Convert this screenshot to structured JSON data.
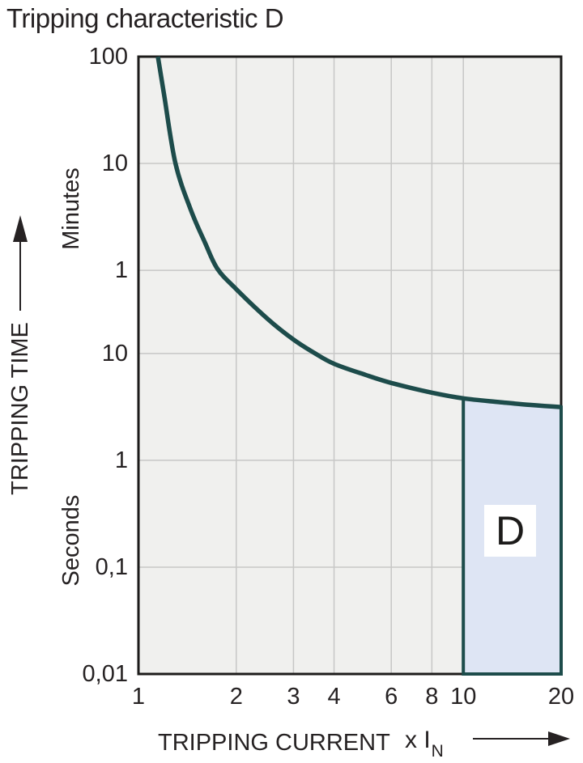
{
  "title": "Tripping characteristic D",
  "region_label": "D",
  "y_axis": {
    "title": "TRIPPING TIME",
    "unit_top": "Minutes",
    "unit_bottom": "Seconds",
    "ticks": [
      {
        "label": "100",
        "seconds": 6000
      },
      {
        "label": "10",
        "seconds": 600
      },
      {
        "label": "1",
        "seconds": 60
      },
      {
        "label": "10",
        "seconds": 10
      },
      {
        "label": "1",
        "seconds": 1
      },
      {
        "label": "0,1",
        "seconds": 0.1
      },
      {
        "label": "0,01",
        "seconds": 0.01
      }
    ]
  },
  "x_axis": {
    "title": "TRIPPING CURRENT",
    "unit_prefix": "x I",
    "unit_sub": "N",
    "ticks": [
      {
        "label": "1",
        "value": 1
      },
      {
        "label": "2",
        "value": 2
      },
      {
        "label": "3",
        "value": 3
      },
      {
        "label": "4",
        "value": 4
      },
      {
        "label": "6",
        "value": 6
      },
      {
        "label": "8",
        "value": 8
      },
      {
        "label": "10",
        "value": 10
      },
      {
        "label": "20",
        "value": 20
      }
    ]
  },
  "colors": {
    "curve": "#1d4c4b",
    "region_fill": "#dee5f4",
    "plot_bg": "#f0f0ee",
    "grid": "#c7c7c6",
    "frame": "#1c1b1a",
    "text": "#262223",
    "label_box_bg": "#ffffff"
  },
  "chart_data": {
    "type": "line",
    "title": "Tripping characteristic D",
    "xlabel": "TRIPPING CURRENT (x IN)",
    "ylabel": "TRIPPING TIME",
    "x_scale": "log",
    "y_scale": "log",
    "grid": true,
    "x_range_multiple_of_In": [
      1,
      20
    ],
    "y_range_seconds": [
      0.01,
      6000
    ],
    "x_ticks": [
      1,
      2,
      3,
      4,
      6,
      8,
      10,
      20
    ],
    "y_ticks_minutes": [
      100,
      10,
      1
    ],
    "y_ticks_seconds": [
      10,
      1,
      0.1,
      0.01
    ],
    "x_gridlines": [
      2,
      3,
      4,
      6,
      8,
      10
    ],
    "y_gridlines_seconds": [
      600,
      60,
      10,
      1,
      0.1
    ],
    "series": [
      {
        "name": "trip-curve",
        "points_x_multiple_vs_time_seconds": [
          [
            1.148,
            6000
          ],
          [
            1.2,
            2600
          ],
          [
            1.3,
            600
          ],
          [
            1.45,
            220
          ],
          [
            1.6,
            110
          ],
          [
            1.75,
            62
          ],
          [
            2.0,
            40
          ],
          [
            2.5,
            21
          ],
          [
            3.0,
            13.5
          ],
          [
            3.5,
            10
          ],
          [
            4.0,
            8.0
          ],
          [
            5.0,
            6.3
          ],
          [
            6.0,
            5.3
          ],
          [
            8.0,
            4.3
          ],
          [
            10.0,
            3.8
          ],
          [
            13.0,
            3.5
          ],
          [
            16.0,
            3.3
          ],
          [
            20.0,
            3.15
          ]
        ]
      }
    ],
    "region": {
      "label": "D",
      "x_from": 10,
      "x_to": 20,
      "time_bottom_seconds": 0.01,
      "time_top_seconds_at_x10": 3.8,
      "time_top_seconds_at_x20": 3.15
    }
  }
}
